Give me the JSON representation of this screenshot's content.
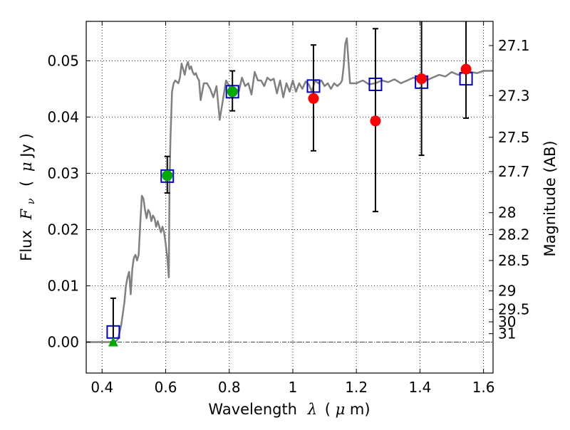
{
  "chart_data": {
    "type": "scatter",
    "xlabel_prefix": "Wavelength",
    "xlabel_symbol": "λ",
    "xlabel_unit_open": "(",
    "xlabel_unit_mu": "μ",
    "xlabel_unit_rest": "m)",
    "ylabel_prefix": "Flux",
    "ylabel_symbol": "F",
    "ylabel_sub": "ν",
    "ylabel_unit_open": "(",
    "ylabel_unit_mu": "μ",
    "ylabel_unit_rest": "Jy )",
    "y2label": "Magnitude (AB)",
    "xlim": [
      0.35,
      1.63
    ],
    "ylim": [
      -0.0055,
      0.057
    ],
    "grid": true,
    "xticks": [
      0.4,
      0.6,
      0.8,
      1.0,
      1.2,
      1.4,
      1.6
    ],
    "xtick_labels": [
      "0.4",
      "0.6",
      "0.8",
      "1",
      "1.2",
      "1.4",
      "1.6"
    ],
    "yticks": [
      0.0,
      0.01,
      0.02,
      0.03,
      0.04,
      0.05
    ],
    "ytick_labels": [
      "0.00",
      "0.01",
      "0.02",
      "0.03",
      "0.04",
      "0.05"
    ],
    "mag_ticks": [
      {
        "label": "27.1",
        "y": 0.0527
      },
      {
        "label": "27.3",
        "y": 0.0438
      },
      {
        "label": "27.5",
        "y": 0.0364
      },
      {
        "label": "27.7",
        "y": 0.0303
      },
      {
        "label": "28",
        "y": 0.023
      },
      {
        "label": "28.2",
        "y": 0.0191
      },
      {
        "label": "28.5",
        "y": 0.0145
      },
      {
        "label": "29",
        "y": 0.0091
      },
      {
        "label": "29.5",
        "y": 0.0058
      },
      {
        "label": "30",
        "y": 0.0036
      },
      {
        "label": "31",
        "y": 0.0015
      }
    ],
    "series": [
      {
        "marker": "line",
        "color": "#808080",
        "x": [
          0.35,
          0.42,
          0.44,
          0.45,
          0.46,
          0.47,
          0.475,
          0.48,
          0.485,
          0.49,
          0.495,
          0.5,
          0.505,
          0.51,
          0.515,
          0.52,
          0.525,
          0.53,
          0.535,
          0.54,
          0.545,
          0.55,
          0.555,
          0.56,
          0.565,
          0.57,
          0.575,
          0.58,
          0.585,
          0.59,
          0.595,
          0.6,
          0.603,
          0.606,
          0.61,
          0.612,
          0.615,
          0.62,
          0.625,
          0.63,
          0.64,
          0.645,
          0.65,
          0.655,
          0.66,
          0.665,
          0.67,
          0.675,
          0.68,
          0.685,
          0.69,
          0.695,
          0.7,
          0.705,
          0.71,
          0.72,
          0.73,
          0.74,
          0.75,
          0.76,
          0.77,
          0.78,
          0.79,
          0.8,
          0.81,
          0.82,
          0.83,
          0.84,
          0.85,
          0.86,
          0.87,
          0.88,
          0.89,
          0.9,
          0.91,
          0.92,
          0.93,
          0.94,
          0.95,
          0.96,
          0.97,
          0.98,
          0.99,
          1.0,
          1.01,
          1.02,
          1.03,
          1.04,
          1.05,
          1.06,
          1.07,
          1.08,
          1.09,
          1.1,
          1.11,
          1.12,
          1.13,
          1.14,
          1.15,
          1.155,
          1.16,
          1.165,
          1.17,
          1.18,
          1.2,
          1.22,
          1.24,
          1.26,
          1.28,
          1.3,
          1.32,
          1.34,
          1.36,
          1.38,
          1.4,
          1.42,
          1.44,
          1.46,
          1.48,
          1.5,
          1.52,
          1.54,
          1.56,
          1.58,
          1.6,
          1.63
        ],
        "y": [
          0.0,
          0.0,
          0.0,
          0.0005,
          0.003,
          0.007,
          0.01,
          0.0115,
          0.0125,
          0.0085,
          0.013,
          0.015,
          0.0155,
          0.0145,
          0.0155,
          0.021,
          0.026,
          0.0255,
          0.0235,
          0.022,
          0.0235,
          0.023,
          0.0215,
          0.0225,
          0.022,
          0.0205,
          0.0215,
          0.0205,
          0.0195,
          0.0205,
          0.0195,
          0.0175,
          0.016,
          0.0145,
          0.0115,
          0.028,
          0.036,
          0.0445,
          0.046,
          0.0465,
          0.046,
          0.047,
          0.0495,
          0.0485,
          0.0475,
          0.049,
          0.0498,
          0.0485,
          0.049,
          0.048,
          0.0475,
          0.0478,
          0.047,
          0.0465,
          0.043,
          0.046,
          0.046,
          0.045,
          0.0435,
          0.0455,
          0.0395,
          0.043,
          0.0465,
          0.0455,
          0.044,
          0.045,
          0.0445,
          0.047,
          0.0455,
          0.046,
          0.044,
          0.048,
          0.0465,
          0.0465,
          0.0455,
          0.047,
          0.0465,
          0.0468,
          0.0442,
          0.0465,
          0.0435,
          0.046,
          0.0445,
          0.0465,
          0.0445,
          0.046,
          0.045,
          0.0463,
          0.0458,
          0.0445,
          0.0465,
          0.046,
          0.0465,
          0.0455,
          0.046,
          0.045,
          0.046,
          0.0455,
          0.046,
          0.0465,
          0.049,
          0.053,
          0.054,
          0.046,
          0.046,
          0.0465,
          0.0458,
          0.046,
          0.0465,
          0.0462,
          0.0467,
          0.046,
          0.0465,
          0.047,
          0.0465,
          0.0465,
          0.047,
          0.0475,
          0.0472,
          0.048,
          0.0475,
          0.048,
          0.048,
          0.0478,
          0.0482,
          0.0482
        ]
      },
      {
        "marker": "square",
        "color": "#0000cc",
        "x": [
          0.435,
          0.605,
          0.81,
          1.065,
          1.26,
          1.405,
          1.545
        ],
        "y": [
          0.0018,
          0.0295,
          0.0445,
          0.0455,
          0.0458,
          0.0462,
          0.0468
        ]
      },
      {
        "marker": "circle",
        "color": "#ff0000",
        "x": [
          1.065,
          1.26,
          1.405,
          1.545
        ],
        "y": [
          0.0433,
          0.0393,
          0.0468,
          0.0485
        ],
        "yerr_low": [
          0.034,
          0.0232,
          0.0332,
          0.0398
        ],
        "yerr_high": [
          0.0528,
          0.0557,
          0.057,
          0.057
        ]
      },
      {
        "marker": "circle",
        "color": "#00aa00",
        "x": [
          0.605,
          0.81
        ],
        "y": [
          0.0296,
          0.0445
        ],
        "yerr_low": [
          0.0265,
          0.0411
        ],
        "yerr_high": [
          0.033,
          0.0482
        ]
      },
      {
        "marker": "triangle",
        "color": "#00aa00",
        "x": [
          0.435
        ],
        "y": [
          0.0
        ],
        "yerr_low": [
          0.0
        ],
        "yerr_high": [
          0.0078
        ]
      }
    ]
  }
}
